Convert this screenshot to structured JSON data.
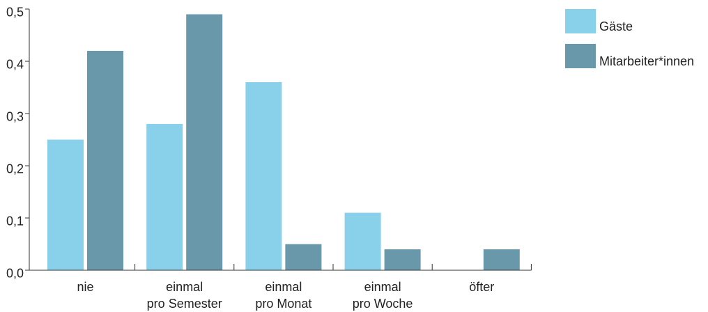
{
  "chart_data": {
    "type": "bar",
    "categories": [
      "nie",
      "einmal pro Semester",
      "einmal pro Monat",
      "einmal pro Woche",
      "öfter"
    ],
    "series": [
      {
        "name": "Gäste",
        "color": "#89d0ea",
        "values": [
          0.25,
          0.28,
          0.36,
          0.11,
          0.0
        ]
      },
      {
        "name": "Mitarbeiter*innen",
        "color": "#6a98ab",
        "values": [
          0.42,
          0.49,
          0.05,
          0.04,
          0.04
        ]
      }
    ],
    "ylim": [
      0,
      0.5
    ],
    "y_ticks": [
      0,
      0.1,
      0.2,
      0.3,
      0.4,
      0.5
    ],
    "y_tick_labels": [
      "0,0",
      "0,1",
      "0,2",
      "0,3",
      "0,4",
      "0,5"
    ],
    "grid": false,
    "legend": "top-right",
    "axis_color": "#333333"
  }
}
